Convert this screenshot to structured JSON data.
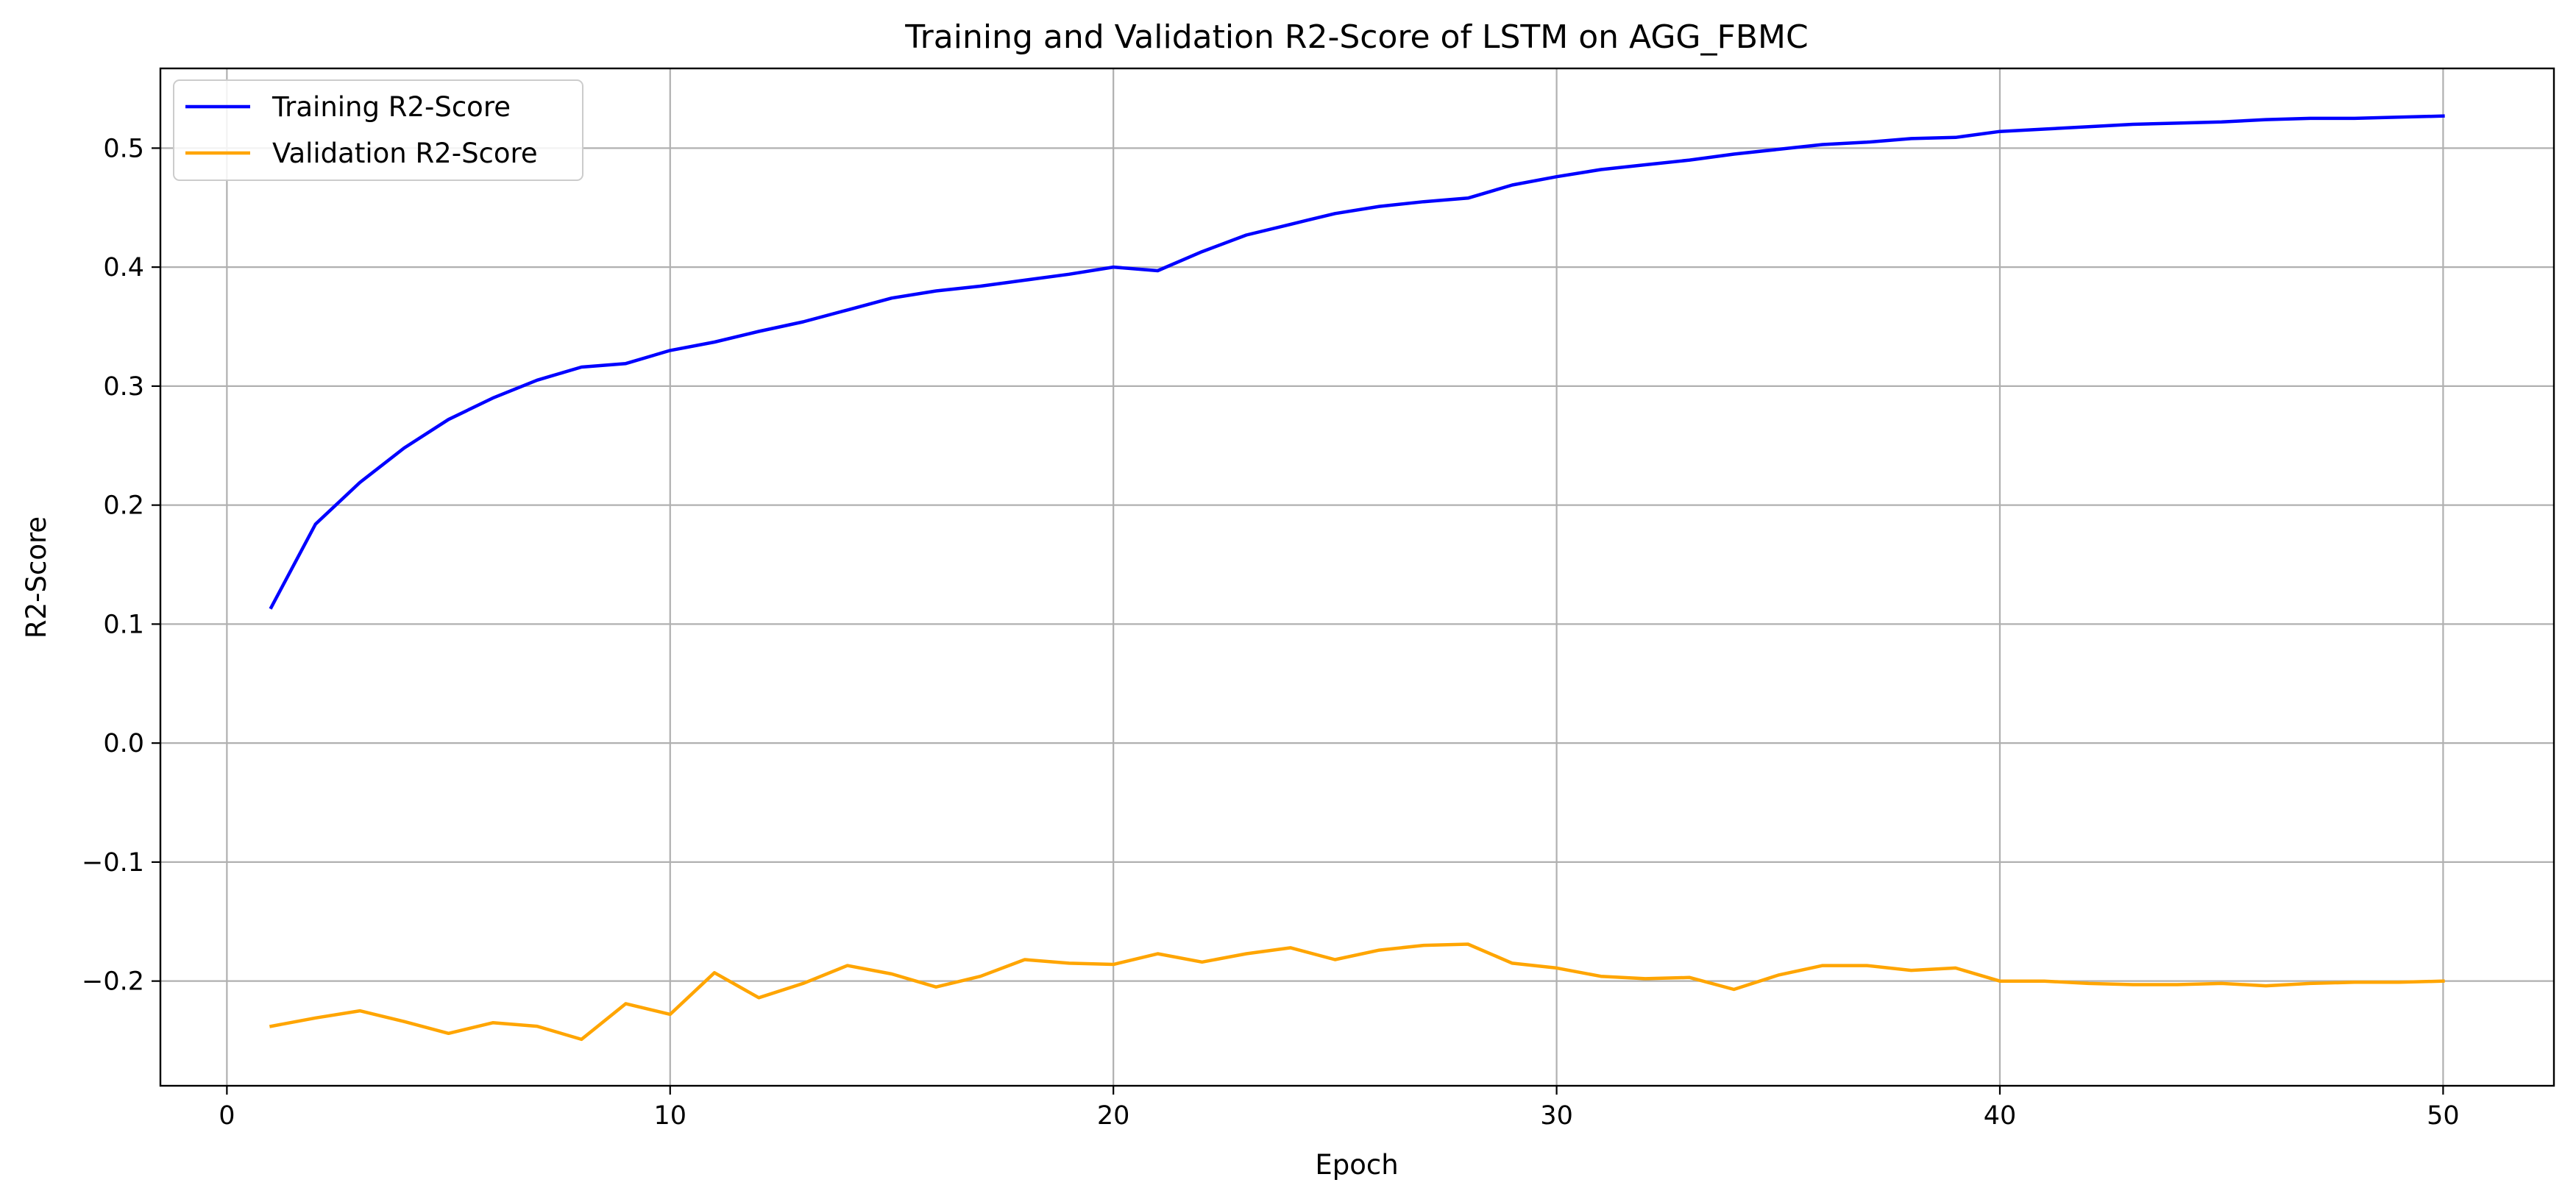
{
  "chart_data": {
    "type": "line",
    "title": "Training and Validation R2-Score of LSTM on AGG_FBMC",
    "xlabel": "Epoch",
    "ylabel": "R2-Score",
    "xlim": [
      -1.5,
      52.5
    ],
    "ylim": [
      -0.288,
      0.567
    ],
    "xticks": [
      0,
      10,
      20,
      30,
      40,
      50
    ],
    "xtick_labels": [
      "0",
      "10",
      "20",
      "30",
      "40",
      "50"
    ],
    "yticks": [
      -0.2,
      -0.1,
      0.0,
      0.1,
      0.2,
      0.3,
      0.4,
      0.5
    ],
    "ytick_labels": [
      "−0.2",
      "−0.1",
      "0.0",
      "0.1",
      "0.2",
      "0.3",
      "0.4",
      "0.5"
    ],
    "grid": true,
    "legend_position": "upper-left",
    "x": [
      1,
      2,
      3,
      4,
      5,
      6,
      7,
      8,
      9,
      10,
      11,
      12,
      13,
      14,
      15,
      16,
      17,
      18,
      19,
      20,
      21,
      22,
      23,
      24,
      25,
      26,
      27,
      28,
      29,
      30,
      31,
      32,
      33,
      34,
      35,
      36,
      37,
      38,
      39,
      40,
      41,
      42,
      43,
      44,
      45,
      46,
      47,
      48,
      49,
      50
    ],
    "series": [
      {
        "name": "Training R2-Score",
        "color": "#0000ff",
        "values": [
          0.114,
          0.184,
          0.219,
          0.248,
          0.272,
          0.29,
          0.305,
          0.316,
          0.319,
          0.33,
          0.337,
          0.346,
          0.354,
          0.364,
          0.374,
          0.38,
          0.384,
          0.389,
          0.394,
          0.4,
          0.397,
          0.413,
          0.427,
          0.436,
          0.445,
          0.451,
          0.455,
          0.458,
          0.469,
          0.476,
          0.482,
          0.486,
          0.49,
          0.495,
          0.499,
          0.503,
          0.505,
          0.508,
          0.509,
          0.514,
          0.516,
          0.518,
          0.52,
          0.521,
          0.522,
          0.524,
          0.525,
          0.525,
          0.526,
          0.527
        ]
      },
      {
        "name": "Validation R2-Score",
        "color": "#ffa500",
        "values": [
          -0.238,
          -0.231,
          -0.225,
          -0.234,
          -0.244,
          -0.235,
          -0.238,
          -0.249,
          -0.219,
          -0.228,
          -0.193,
          -0.214,
          -0.202,
          -0.187,
          -0.194,
          -0.205,
          -0.196,
          -0.182,
          -0.185,
          -0.186,
          -0.177,
          -0.184,
          -0.177,
          -0.172,
          -0.182,
          -0.174,
          -0.17,
          -0.169,
          -0.185,
          -0.189,
          -0.196,
          -0.198,
          -0.197,
          -0.207,
          -0.195,
          -0.187,
          -0.187,
          -0.191,
          -0.189,
          -0.2,
          -0.2,
          -0.202,
          -0.203,
          -0.203,
          -0.202,
          -0.204,
          -0.202,
          -0.201,
          -0.201,
          -0.2
        ]
      }
    ]
  }
}
